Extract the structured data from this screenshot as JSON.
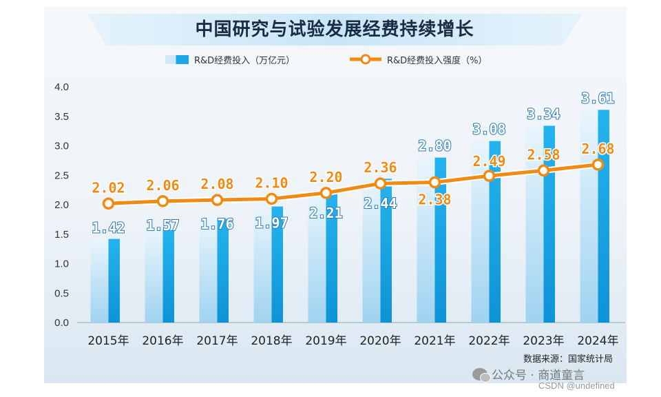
{
  "page": {
    "source_note": "数据来源：国家统计局",
    "watermark": "公众号 · 商道童言",
    "csdn_note": "CSDN @undefined"
  },
  "chart_data": {
    "type": "bar",
    "title": "中国研究与试验发展经费持续增长",
    "categories": [
      "2015年",
      "2016年",
      "2017年",
      "2018年",
      "2019年",
      "2020年",
      "2021年",
      "2022年",
      "2023年",
      "2024年"
    ],
    "series": [
      {
        "name": "R&D经费投入（万亿元）",
        "type": "bar",
        "color": "#1ba6e6",
        "values": [
          1.42,
          1.57,
          1.76,
          1.97,
          2.21,
          2.44,
          2.8,
          3.08,
          3.34,
          3.61
        ]
      },
      {
        "name": "R&D经费投入强度（%）",
        "type": "line",
        "color": "#f08a12",
        "values": [
          2.02,
          2.06,
          2.08,
          2.1,
          2.2,
          2.36,
          2.38,
          2.49,
          2.58,
          2.68
        ]
      }
    ],
    "bar_labels": [
      "1.42",
      "1.57",
      "1.76",
      "1.97",
      "2.21",
      "2.44",
      "2.80",
      "3.08",
      "3.34",
      "3.61"
    ],
    "line_labels": [
      "2.02",
      "2.06",
      "2.08",
      "2.10",
      "2.20",
      "2.36",
      "2.38",
      "2.49",
      "2.58",
      "2.68"
    ],
    "yticks": [
      "0.0",
      "0.5",
      "1.0",
      "1.5",
      "2.0",
      "2.5",
      "3.0",
      "3.5",
      "4.0"
    ],
    "ylim": [
      0,
      4.0
    ],
    "legend_position": "top-center",
    "grid": false
  }
}
